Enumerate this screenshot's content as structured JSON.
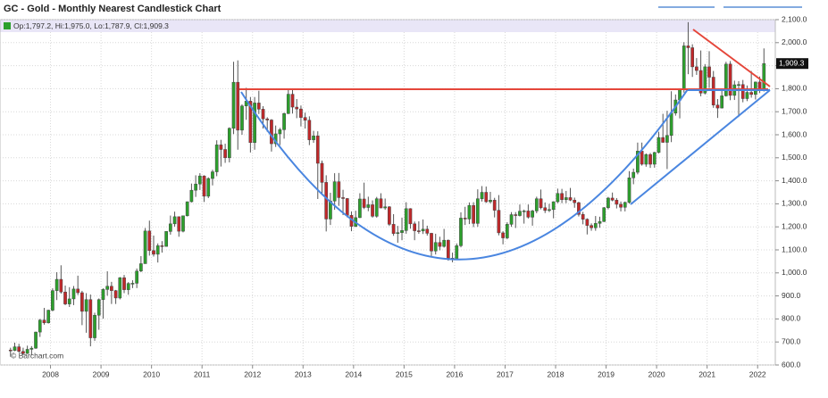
{
  "chart_data": {
    "type": "candlestick",
    "title": "GC - Gold - Monthly Nearest Candlestick Chart",
    "legend": "Op:1,797.2, Hi:1,975.0, Lo:1,787.9, Cl:1,909.3",
    "watermark": "© Barchart.com",
    "last_price_label": "1,909.3",
    "up_color": "#2ca02c",
    "down_color": "#c0282a",
    "grid": true,
    "xlim": [
      2007.0,
      2022.35
    ],
    "xticks": [
      2008,
      2009,
      2010,
      2011,
      2012,
      2013,
      2014,
      2015,
      2016,
      2017,
      2018,
      2019,
      2020,
      2021,
      2022
    ],
    "ylim": [
      600,
      2100
    ],
    "yticks": [
      {
        "value": 600,
        "label": "600.0"
      },
      {
        "value": 700,
        "label": "700.0"
      },
      {
        "value": 800,
        "label": "800.0"
      },
      {
        "value": 900,
        "label": "900.0"
      },
      {
        "value": 1000,
        "label": "1,000.0"
      },
      {
        "value": 1100,
        "label": "1,100.0"
      },
      {
        "value": 1200,
        "label": "1,200.0"
      },
      {
        "value": 1300,
        "label": "1,300.0"
      },
      {
        "value": 1400,
        "label": "1,400.0"
      },
      {
        "value": 1500,
        "label": "1,500.0"
      },
      {
        "value": 1600,
        "label": "1,600.0"
      },
      {
        "value": 1700,
        "label": "1,700.0"
      },
      {
        "value": 1800,
        "label": "1,800.0"
      },
      {
        "value": 1900,
        "label": "1,900.0"
      },
      {
        "value": 2000,
        "label": "2,000.0"
      },
      {
        "value": 2100,
        "label": "2,100.0"
      }
    ],
    "x": [
      "2007-03",
      "2007-04",
      "2007-05",
      "2007-06",
      "2007-07",
      "2007-08",
      "2007-09",
      "2007-10",
      "2007-11",
      "2007-12",
      "2008-01",
      "2008-02",
      "2008-03",
      "2008-04",
      "2008-05",
      "2008-06",
      "2008-07",
      "2008-08",
      "2008-09",
      "2008-10",
      "2008-11",
      "2008-12",
      "2009-01",
      "2009-02",
      "2009-03",
      "2009-04",
      "2009-05",
      "2009-06",
      "2009-07",
      "2009-08",
      "2009-09",
      "2009-10",
      "2009-11",
      "2009-12",
      "2010-01",
      "2010-02",
      "2010-03",
      "2010-04",
      "2010-05",
      "2010-06",
      "2010-07",
      "2010-08",
      "2010-09",
      "2010-10",
      "2010-11",
      "2010-12",
      "2011-01",
      "2011-02",
      "2011-03",
      "2011-04",
      "2011-05",
      "2011-06",
      "2011-07",
      "2011-08",
      "2011-09",
      "2011-10",
      "2011-11",
      "2011-12",
      "2012-01",
      "2012-02",
      "2012-03",
      "2012-04",
      "2012-05",
      "2012-06",
      "2012-07",
      "2012-08",
      "2012-09",
      "2012-10",
      "2012-11",
      "2012-12",
      "2013-01",
      "2013-02",
      "2013-03",
      "2013-04",
      "2013-05",
      "2013-06",
      "2013-07",
      "2013-08",
      "2013-09",
      "2013-10",
      "2013-11",
      "2013-12",
      "2014-01",
      "2014-02",
      "2014-03",
      "2014-04",
      "2014-05",
      "2014-06",
      "2014-07",
      "2014-08",
      "2014-09",
      "2014-10",
      "2014-11",
      "2014-12",
      "2015-01",
      "2015-02",
      "2015-03",
      "2015-04",
      "2015-05",
      "2015-06",
      "2015-07",
      "2015-08",
      "2015-09",
      "2015-10",
      "2015-11",
      "2015-12",
      "2016-01",
      "2016-02",
      "2016-03",
      "2016-04",
      "2016-05",
      "2016-06",
      "2016-07",
      "2016-08",
      "2016-09",
      "2016-10",
      "2016-11",
      "2016-12",
      "2017-01",
      "2017-02",
      "2017-03",
      "2017-04",
      "2017-05",
      "2017-06",
      "2017-07",
      "2017-08",
      "2017-09",
      "2017-10",
      "2017-11",
      "2017-12",
      "2018-01",
      "2018-02",
      "2018-03",
      "2018-04",
      "2018-05",
      "2018-06",
      "2018-07",
      "2018-08",
      "2018-09",
      "2018-10",
      "2018-11",
      "2018-12",
      "2019-01",
      "2019-02",
      "2019-03",
      "2019-04",
      "2019-05",
      "2019-06",
      "2019-07",
      "2019-08",
      "2019-09",
      "2019-10",
      "2019-11",
      "2019-12",
      "2020-01",
      "2020-02",
      "2020-03",
      "2020-04",
      "2020-05",
      "2020-06",
      "2020-07",
      "2020-08",
      "2020-09",
      "2020-10",
      "2020-11",
      "2020-12",
      "2021-01",
      "2021-02",
      "2021-03",
      "2021-04",
      "2021-05",
      "2021-06",
      "2021-07",
      "2021-08",
      "2021-09",
      "2021-10",
      "2021-11",
      "2021-12",
      "2022-01",
      "2022-02"
    ],
    "open": [
      665,
      663,
      679,
      659,
      650,
      668,
      673,
      743,
      795,
      783,
      838,
      923,
      972,
      917,
      865,
      887,
      930,
      914,
      833,
      884,
      718,
      816,
      884,
      928,
      942,
      923,
      891,
      979,
      927,
      954,
      955,
      1008,
      1040,
      1182,
      1097,
      1081,
      1118,
      1115,
      1180,
      1213,
      1244,
      1181,
      1248,
      1309,
      1359,
      1386,
      1421,
      1333,
      1410,
      1439,
      1556,
      1536,
      1500,
      1628,
      1828,
      1620,
      1725,
      1746,
      1566,
      1738,
      1711,
      1669,
      1664,
      1561,
      1604,
      1622,
      1692,
      1776,
      1720,
      1712,
      1675,
      1663,
      1578,
      1595,
      1476,
      1393,
      1234,
      1312,
      1396,
      1327,
      1323,
      1250,
      1202,
      1240,
      1321,
      1284,
      1296,
      1246,
      1322,
      1282,
      1287,
      1211,
      1171,
      1175,
      1184,
      1279,
      1213,
      1183,
      1182,
      1190,
      1172,
      1095,
      1132,
      1115,
      1142,
      1064,
      1061,
      1118,
      1238,
      1234,
      1293,
      1215,
      1322,
      1350,
      1309,
      1316,
      1272,
      1174,
      1152,
      1211,
      1253,
      1249,
      1268,
      1269,
      1242,
      1269,
      1322,
      1283,
      1271,
      1275,
      1309,
      1345,
      1318,
      1327,
      1316,
      1305,
      1254,
      1233,
      1206,
      1196,
      1215,
      1223,
      1283,
      1325,
      1316,
      1298,
      1285,
      1306,
      1413,
      1437,
      1529,
      1472,
      1514,
      1472,
      1523,
      1588,
      1567,
      1597,
      1694,
      1751,
      1800,
      1986,
      1978,
      1895,
      1879,
      1781,
      1895,
      1850,
      1729,
      1716,
      1769,
      1907,
      1771,
      1817,
      1818,
      1757,
      1784,
      1775,
      1829,
      1797.2
    ],
    "high": [
      675,
      697,
      692,
      675,
      684,
      682,
      745,
      800,
      848,
      840,
      933,
      1003,
      1033,
      945,
      938,
      943,
      988,
      922,
      912,
      906,
      827,
      889,
      933,
      1007,
      961,
      926,
      982,
      991,
      960,
      968,
      1019,
      1073,
      1195,
      1227,
      1162,
      1128,
      1138,
      1181,
      1249,
      1266,
      1245,
      1248,
      1310,
      1388,
      1424,
      1433,
      1424,
      1415,
      1448,
      1576,
      1578,
      1561,
      1632,
      1917,
      1923,
      1732,
      1804,
      1764,
      1764,
      1791,
      1724,
      1676,
      1668,
      1640,
      1630,
      1696,
      1795,
      1798,
      1755,
      1727,
      1696,
      1680,
      1617,
      1615,
      1488,
      1424,
      1348,
      1433,
      1434,
      1361,
      1325,
      1267,
      1270,
      1346,
      1392,
      1331,
      1315,
      1330,
      1346,
      1323,
      1290,
      1255,
      1204,
      1240,
      1307,
      1281,
      1223,
      1224,
      1232,
      1205,
      1174,
      1170,
      1157,
      1191,
      1145,
      1088,
      1128,
      1263,
      1287,
      1306,
      1307,
      1363,
      1377,
      1375,
      1352,
      1326,
      1338,
      1181,
      1220,
      1264,
      1264,
      1297,
      1275,
      1297,
      1274,
      1331,
      1362,
      1306,
      1300,
      1311,
      1366,
      1365,
      1356,
      1369,
      1327,
      1309,
      1265,
      1237,
      1215,
      1247,
      1244,
      1286,
      1330,
      1349,
      1325,
      1310,
      1310,
      1442,
      1453,
      1566,
      1566,
      1519,
      1521,
      1526,
      1613,
      1691,
      1704,
      1789,
      1775,
      1802,
      2002,
      2089,
      1993,
      1933,
      1966,
      1907,
      1963,
      1877,
      1755,
      1799,
      1917,
      1920,
      1835,
      1833,
      1838,
      1814,
      1877,
      1831,
      1853,
      1975.0
    ],
    "low": [
      636,
      660,
      654,
      642,
      648,
      642,
      670,
      722,
      775,
      780,
      833,
      882,
      910,
      860,
      852,
      860,
      904,
      773,
      740,
      681,
      705,
      753,
      801,
      901,
      865,
      865,
      885,
      912,
      905,
      934,
      934,
      1003,
      1040,
      1075,
      1071,
      1045,
      1088,
      1114,
      1166,
      1201,
      1157,
      1176,
      1245,
      1306,
      1330,
      1360,
      1308,
      1325,
      1380,
      1420,
      1462,
      1478,
      1480,
      1603,
      1535,
      1600,
      1665,
      1523,
      1535,
      1690,
      1627,
      1613,
      1527,
      1547,
      1555,
      1583,
      1690,
      1692,
      1672,
      1636,
      1627,
      1555,
      1565,
      1321,
      1338,
      1180,
      1208,
      1274,
      1291,
      1251,
      1241,
      1181,
      1199,
      1238,
      1277,
      1268,
      1240,
      1240,
      1281,
      1274,
      1204,
      1161,
      1131,
      1142,
      1170,
      1192,
      1142,
      1170,
      1169,
      1162,
      1073,
      1080,
      1098,
      1110,
      1053,
      1046,
      1061,
      1111,
      1208,
      1212,
      1199,
      1200,
      1310,
      1304,
      1302,
      1241,
      1163,
      1124,
      1146,
      1200,
      1195,
      1245,
      1214,
      1236,
      1205,
      1259,
      1276,
      1260,
      1264,
      1237,
      1303,
      1303,
      1303,
      1312,
      1283,
      1245,
      1211,
      1167,
      1183,
      1183,
      1196,
      1221,
      1276,
      1311,
      1280,
      1267,
      1267,
      1301,
      1385,
      1428,
      1466,
      1461,
      1456,
      1457,
      1519,
      1565,
      1451,
      1568,
      1683,
      1671,
      1783,
      1863,
      1851,
      1860,
      1767,
      1775,
      1803,
      1717,
      1673,
      1714,
      1766,
      1750,
      1751,
      1677,
      1741,
      1746,
      1761,
      1753,
      1781,
      1787.9
    ],
    "close": [
      663,
      679,
      659,
      650,
      668,
      673,
      743,
      795,
      783,
      838,
      923,
      972,
      917,
      865,
      887,
      930,
      914,
      833,
      884,
      718,
      816,
      884,
      928,
      942,
      923,
      891,
      979,
      927,
      954,
      955,
      1008,
      1040,
      1182,
      1097,
      1081,
      1118,
      1115,
      1180,
      1213,
      1244,
      1181,
      1248,
      1309,
      1359,
      1386,
      1421,
      1333,
      1410,
      1439,
      1556,
      1536,
      1500,
      1628,
      1828,
      1620,
      1725,
      1746,
      1566,
      1738,
      1711,
      1669,
      1664,
      1561,
      1604,
      1622,
      1692,
      1776,
      1720,
      1712,
      1675,
      1663,
      1578,
      1595,
      1476,
      1393,
      1234,
      1312,
      1396,
      1327,
      1323,
      1250,
      1202,
      1240,
      1321,
      1284,
      1296,
      1246,
      1322,
      1282,
      1287,
      1211,
      1171,
      1175,
      1184,
      1279,
      1213,
      1183,
      1182,
      1190,
      1172,
      1095,
      1132,
      1115,
      1142,
      1064,
      1061,
      1118,
      1238,
      1234,
      1293,
      1215,
      1322,
      1350,
      1309,
      1316,
      1272,
      1174,
      1152,
      1211,
      1253,
      1249,
      1268,
      1269,
      1242,
      1269,
      1322,
      1283,
      1271,
      1275,
      1309,
      1345,
      1318,
      1327,
      1316,
      1305,
      1254,
      1233,
      1206,
      1196,
      1215,
      1223,
      1283,
      1325,
      1316,
      1298,
      1285,
      1306,
      1413,
      1437,
      1529,
      1472,
      1514,
      1472,
      1523,
      1588,
      1567,
      1597,
      1694,
      1751,
      1800,
      1986,
      1978,
      1895,
      1879,
      1781,
      1895,
      1850,
      1729,
      1716,
      1769,
      1907,
      1771,
      1817,
      1818,
      1757,
      1784,
      1775,
      1829,
      1797,
      1909.3
    ]
  }
}
